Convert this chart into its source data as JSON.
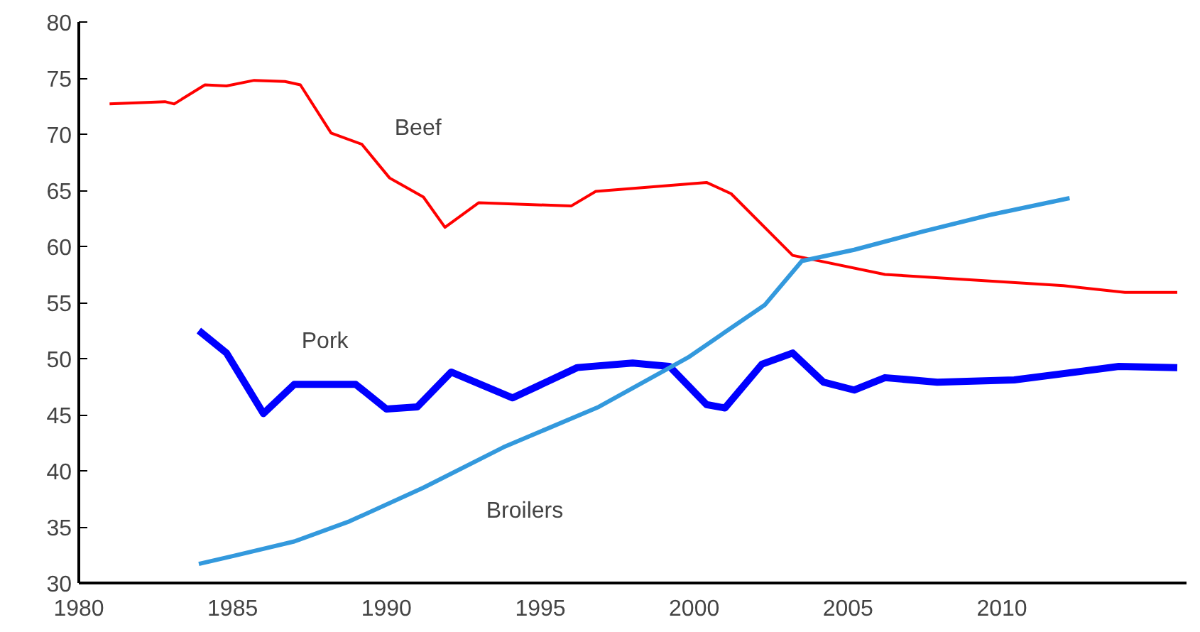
{
  "chart_data": {
    "type": "line",
    "x": [
      1981.0,
      1982.8,
      1983.1,
      1984.1,
      1984.8,
      1985.7,
      1986.7,
      1987.2,
      1988.2,
      1989.2,
      1990.1,
      1991.2,
      1991.9,
      1993.0,
      1996.0,
      1996.8,
      2000.4,
      2001.2,
      2003.2,
      2006.2,
      2012.0,
      2014.0,
      2015.7
    ],
    "series": [
      {
        "name": "Beef",
        "color": "#ff0000",
        "values": [
          72.7,
          72.9,
          72.7,
          74.4,
          74.3,
          74.8,
          74.7,
          74.4,
          70.1,
          69.1,
          66.1,
          64.4,
          61.7,
          63.9,
          63.6,
          64.9,
          65.7,
          64.7,
          59.2,
          57.5,
          56.5,
          55.9,
          55.9
        ]
      },
      {
        "name": "Pork",
        "color": "#0000ff",
        "x": [
          1983.9,
          1984.8,
          1986.0,
          1987.0,
          1988.0,
          1989.0,
          1990.0,
          1991.0,
          1992.1,
          1994.1,
          1996.2,
          1998.0,
          1999.2,
          2000.4,
          2001.0,
          2002.2,
          2003.2,
          2004.2,
          2005.2,
          2006.2,
          2007.9,
          2010.4,
          2013.8,
          2015.7
        ],
        "values": [
          52.5,
          50.5,
          45.1,
          47.7,
          47.7,
          47.7,
          45.5,
          45.7,
          48.8,
          46.5,
          49.2,
          49.6,
          49.3,
          45.9,
          45.6,
          49.5,
          50.5,
          47.9,
          47.2,
          48.3,
          47.9,
          48.1,
          49.3,
          49.2
        ]
      },
      {
        "name": "Broilers",
        "color": "#3399dd",
        "x": [
          1983.9,
          1985.0,
          1987.0,
          1988.8,
          1991.2,
          1993.8,
          1996.9,
          1999.8,
          2002.3,
          2003.5,
          2005.2,
          2007.4,
          2009.6,
          2012.2
        ],
        "values": [
          31.7,
          32.4,
          33.7,
          35.5,
          38.5,
          42.1,
          45.7,
          50.1,
          54.8,
          58.7,
          59.7,
          61.3,
          62.8,
          64.3
        ]
      }
    ],
    "xlim": [
      1980,
      2016
    ],
    "xticks": [
      1980,
      1985,
      1990,
      1995,
      2000,
      2005,
      2010
    ],
    "ylim": [
      30,
      80
    ],
    "yticks": [
      30,
      35,
      40,
      45,
      50,
      55,
      60,
      65,
      70,
      75,
      80
    ],
    "grid": false
  }
}
